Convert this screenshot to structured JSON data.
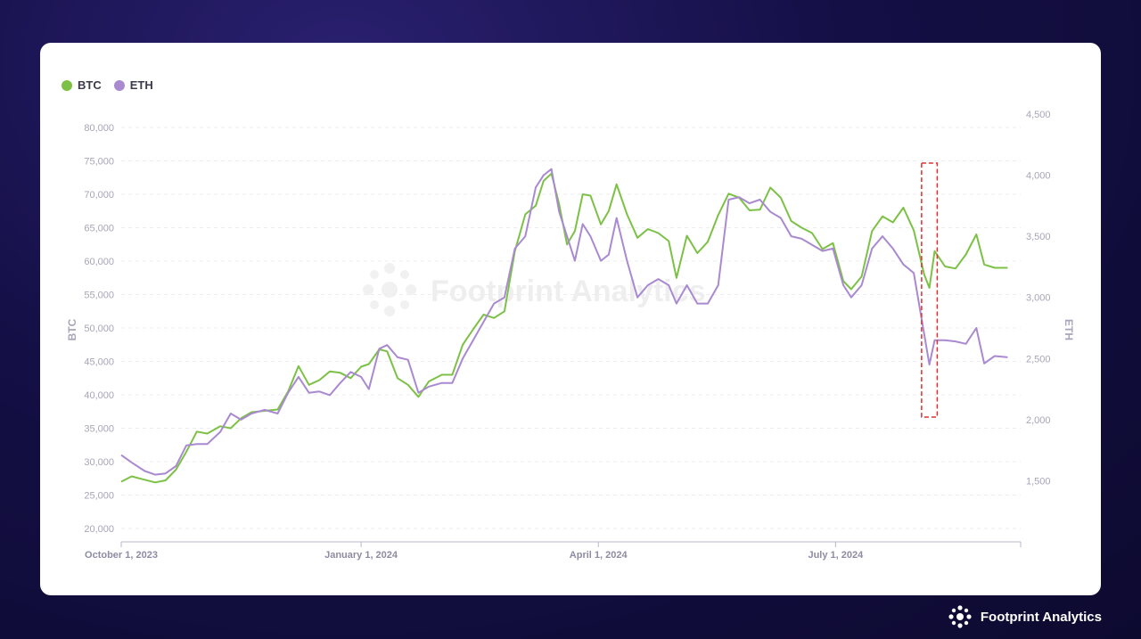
{
  "brand": {
    "name": "Footprint Analytics",
    "icon": "footprint-logo-icon"
  },
  "watermark": "Footprint Analytics",
  "chart_data": {
    "type": "line",
    "title": "",
    "xlabel": "",
    "y_left_label": "BTC",
    "y_right_label": "ETH",
    "x_range": [
      "2023-10-01",
      "2024-09-10"
    ],
    "y_left_range": [
      18000,
      82000
    ],
    "y_right_range": [
      1000,
      4500
    ],
    "y_left_ticks": [
      "20,000",
      "25,000",
      "30,000",
      "35,000",
      "40,000",
      "45,000",
      "50,000",
      "55,000",
      "60,000",
      "65,000",
      "70,000",
      "75,000",
      "80,000"
    ],
    "y_left_tick_values": [
      20000,
      25000,
      30000,
      35000,
      40000,
      45000,
      50000,
      55000,
      60000,
      65000,
      70000,
      75000,
      80000
    ],
    "y_right_ticks": [
      "1,500",
      "2,000",
      "2,500",
      "3,000",
      "3,500",
      "4,000",
      "4,500"
    ],
    "y_right_tick_values": [
      1500,
      2000,
      2500,
      3000,
      3500,
      4000,
      4500
    ],
    "x_ticks": [
      {
        "label": "October 1, 2023",
        "date": "2023-10-01"
      },
      {
        "label": "January 1, 2024",
        "date": "2024-01-01"
      },
      {
        "label": "April 1, 2024",
        "date": "2024-04-01"
      },
      {
        "label": "July 1, 2024",
        "date": "2024-07-01"
      }
    ],
    "grid": true,
    "legend_position": "top-left",
    "highlight": {
      "x_start": "2024-08-03",
      "x_end": "2024-08-09",
      "style": "dashed",
      "color": "#e03030"
    },
    "series": [
      {
        "name": "BTC",
        "axis": "left",
        "color": "#7cc146",
        "points": [
          [
            "2023-10-01",
            27000
          ],
          [
            "2023-10-05",
            27800
          ],
          [
            "2023-10-10",
            27300
          ],
          [
            "2023-10-14",
            26900
          ],
          [
            "2023-10-18",
            27200
          ],
          [
            "2023-10-22",
            28800
          ],
          [
            "2023-10-26",
            31500
          ],
          [
            "2023-10-30",
            34500
          ],
          [
            "2023-11-03",
            34200
          ],
          [
            "2023-11-08",
            35300
          ],
          [
            "2023-11-12",
            35000
          ],
          [
            "2023-11-16",
            36500
          ],
          [
            "2023-11-20",
            37400
          ],
          [
            "2023-11-25",
            37600
          ],
          [
            "2023-11-30",
            37800
          ],
          [
            "2023-12-04",
            40500
          ],
          [
            "2023-12-08",
            44300
          ],
          [
            "2023-12-12",
            41500
          ],
          [
            "2023-12-16",
            42200
          ],
          [
            "2023-12-20",
            43500
          ],
          [
            "2023-12-24",
            43300
          ],
          [
            "2023-12-28",
            42500
          ],
          [
            "2024-01-01",
            44200
          ],
          [
            "2024-01-04",
            44600
          ],
          [
            "2024-01-08",
            46800
          ],
          [
            "2024-01-11",
            46500
          ],
          [
            "2024-01-15",
            42500
          ],
          [
            "2024-01-19",
            41500
          ],
          [
            "2024-01-23",
            39700
          ],
          [
            "2024-01-27",
            42000
          ],
          [
            "2024-02-01",
            43000
          ],
          [
            "2024-02-05",
            43000
          ],
          [
            "2024-02-09",
            47500
          ],
          [
            "2024-02-13",
            49800
          ],
          [
            "2024-02-17",
            52000
          ],
          [
            "2024-02-21",
            51500
          ],
          [
            "2024-02-25",
            52500
          ],
          [
            "2024-02-29",
            61500
          ],
          [
            "2024-03-04",
            67000
          ],
          [
            "2024-03-08",
            68300
          ],
          [
            "2024-03-11",
            72000
          ],
          [
            "2024-03-14",
            73100
          ],
          [
            "2024-03-17",
            68500
          ],
          [
            "2024-03-20",
            62500
          ],
          [
            "2024-03-23",
            64500
          ],
          [
            "2024-03-26",
            70000
          ],
          [
            "2024-03-29",
            69800
          ],
          [
            "2024-04-02",
            65500
          ],
          [
            "2024-04-05",
            67500
          ],
          [
            "2024-04-08",
            71500
          ],
          [
            "2024-04-12",
            67000
          ],
          [
            "2024-04-16",
            63500
          ],
          [
            "2024-04-20",
            64800
          ],
          [
            "2024-04-24",
            64200
          ],
          [
            "2024-04-28",
            63000
          ],
          [
            "2024-05-01",
            57500
          ],
          [
            "2024-05-05",
            63800
          ],
          [
            "2024-05-09",
            61200
          ],
          [
            "2024-05-13",
            62900
          ],
          [
            "2024-05-17",
            66900
          ],
          [
            "2024-05-21",
            70100
          ],
          [
            "2024-05-25",
            69500
          ],
          [
            "2024-05-29",
            67600
          ],
          [
            "2024-06-02",
            67700
          ],
          [
            "2024-06-06",
            71000
          ],
          [
            "2024-06-10",
            69500
          ],
          [
            "2024-06-14",
            66000
          ],
          [
            "2024-06-18",
            65000
          ],
          [
            "2024-06-22",
            64200
          ],
          [
            "2024-06-26",
            61800
          ],
          [
            "2024-06-30",
            62700
          ],
          [
            "2024-07-04",
            57000
          ],
          [
            "2024-07-07",
            55800
          ],
          [
            "2024-07-11",
            57700
          ],
          [
            "2024-07-15",
            64500
          ],
          [
            "2024-07-19",
            66700
          ],
          [
            "2024-07-23",
            65800
          ],
          [
            "2024-07-27",
            68000
          ],
          [
            "2024-07-31",
            64600
          ],
          [
            "2024-08-04",
            58000
          ],
          [
            "2024-08-06",
            56000
          ],
          [
            "2024-08-08",
            61500
          ],
          [
            "2024-08-12",
            59200
          ],
          [
            "2024-08-16",
            58900
          ],
          [
            "2024-08-20",
            61000
          ],
          [
            "2024-08-24",
            64000
          ],
          [
            "2024-08-27",
            59500
          ],
          [
            "2024-08-31",
            59000
          ],
          [
            "2024-09-05",
            59000
          ]
        ]
      },
      {
        "name": "ETH",
        "axis": "right",
        "color": "#a989d0",
        "points": [
          [
            "2023-10-01",
            1710
          ],
          [
            "2023-10-05",
            1650
          ],
          [
            "2023-10-10",
            1580
          ],
          [
            "2023-10-14",
            1550
          ],
          [
            "2023-10-18",
            1560
          ],
          [
            "2023-10-22",
            1620
          ],
          [
            "2023-10-26",
            1790
          ],
          [
            "2023-10-30",
            1800
          ],
          [
            "2023-11-03",
            1800
          ],
          [
            "2023-11-08",
            1900
          ],
          [
            "2023-11-12",
            2050
          ],
          [
            "2023-11-16",
            2000
          ],
          [
            "2023-11-20",
            2050
          ],
          [
            "2023-11-25",
            2080
          ],
          [
            "2023-11-30",
            2050
          ],
          [
            "2023-12-04",
            2220
          ],
          [
            "2023-12-08",
            2350
          ],
          [
            "2023-12-12",
            2220
          ],
          [
            "2023-12-16",
            2230
          ],
          [
            "2023-12-20",
            2200
          ],
          [
            "2023-12-24",
            2300
          ],
          [
            "2023-12-28",
            2390
          ],
          [
            "2024-01-01",
            2350
          ],
          [
            "2024-01-04",
            2250
          ],
          [
            "2024-01-08",
            2580
          ],
          [
            "2024-01-11",
            2610
          ],
          [
            "2024-01-15",
            2510
          ],
          [
            "2024-01-19",
            2490
          ],
          [
            "2024-01-23",
            2220
          ],
          [
            "2024-01-27",
            2270
          ],
          [
            "2024-02-01",
            2300
          ],
          [
            "2024-02-05",
            2300
          ],
          [
            "2024-02-09",
            2500
          ],
          [
            "2024-02-13",
            2650
          ],
          [
            "2024-02-17",
            2800
          ],
          [
            "2024-02-21",
            2950
          ],
          [
            "2024-02-25",
            3000
          ],
          [
            "2024-02-29",
            3400
          ],
          [
            "2024-03-04",
            3500
          ],
          [
            "2024-03-08",
            3900
          ],
          [
            "2024-03-11",
            4000
          ],
          [
            "2024-03-14",
            4050
          ],
          [
            "2024-03-17",
            3700
          ],
          [
            "2024-03-20",
            3500
          ],
          [
            "2024-03-23",
            3300
          ],
          [
            "2024-03-26",
            3600
          ],
          [
            "2024-03-29",
            3500
          ],
          [
            "2024-04-02",
            3300
          ],
          [
            "2024-04-05",
            3350
          ],
          [
            "2024-04-08",
            3650
          ],
          [
            "2024-04-12",
            3300
          ],
          [
            "2024-04-16",
            3000
          ],
          [
            "2024-04-20",
            3100
          ],
          [
            "2024-04-24",
            3150
          ],
          [
            "2024-04-28",
            3100
          ],
          [
            "2024-05-01",
            2950
          ],
          [
            "2024-05-05",
            3100
          ],
          [
            "2024-05-09",
            2950
          ],
          [
            "2024-05-13",
            2950
          ],
          [
            "2024-05-17",
            3100
          ],
          [
            "2024-05-21",
            3800
          ],
          [
            "2024-05-25",
            3820
          ],
          [
            "2024-05-29",
            3770
          ],
          [
            "2024-06-02",
            3800
          ],
          [
            "2024-06-06",
            3700
          ],
          [
            "2024-06-10",
            3650
          ],
          [
            "2024-06-14",
            3500
          ],
          [
            "2024-06-18",
            3480
          ],
          [
            "2024-06-22",
            3430
          ],
          [
            "2024-06-26",
            3380
          ],
          [
            "2024-06-30",
            3400
          ],
          [
            "2024-07-04",
            3100
          ],
          [
            "2024-07-07",
            3000
          ],
          [
            "2024-07-11",
            3100
          ],
          [
            "2024-07-15",
            3400
          ],
          [
            "2024-07-19",
            3500
          ],
          [
            "2024-07-23",
            3400
          ],
          [
            "2024-07-27",
            3270
          ],
          [
            "2024-07-31",
            3200
          ],
          [
            "2024-08-04",
            2700
          ],
          [
            "2024-08-06",
            2450
          ],
          [
            "2024-08-08",
            2650
          ],
          [
            "2024-08-12",
            2650
          ],
          [
            "2024-08-16",
            2640
          ],
          [
            "2024-08-20",
            2620
          ],
          [
            "2024-08-24",
            2750
          ],
          [
            "2024-08-27",
            2460
          ],
          [
            "2024-08-31",
            2520
          ],
          [
            "2024-09-05",
            2510
          ]
        ]
      }
    ]
  }
}
